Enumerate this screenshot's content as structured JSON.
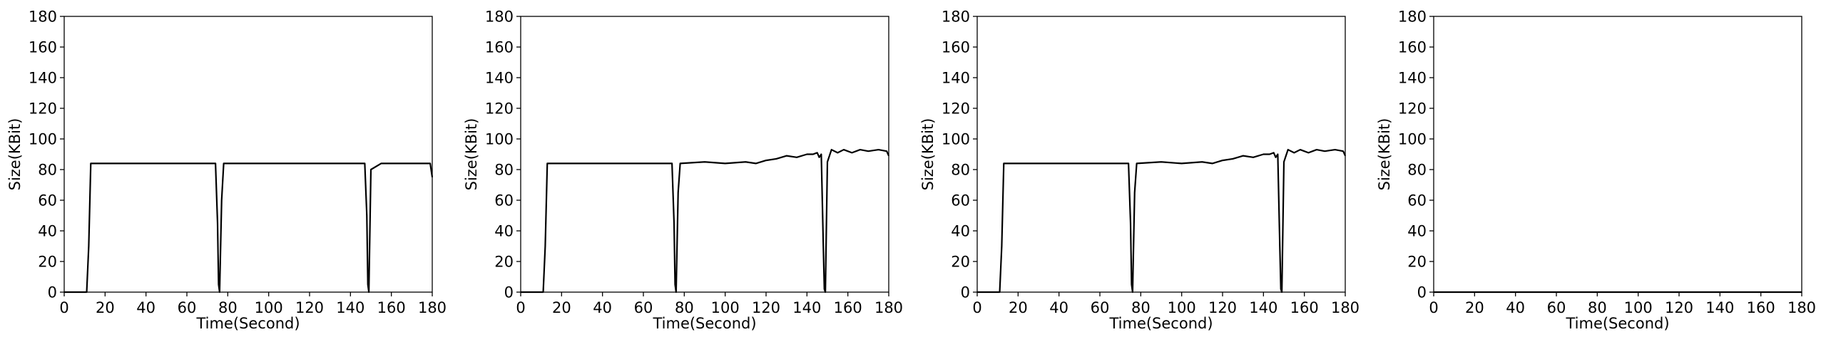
{
  "chart_data": [
    {
      "type": "line",
      "xlabel": "Time(Second)",
      "ylabel": "Size(KBit)",
      "xlim": [
        0,
        180
      ],
      "ylim": [
        0,
        180
      ],
      "xticks": [
        "0",
        "20",
        "40",
        "60",
        "80",
        "100",
        "120",
        "140",
        "160",
        "180"
      ],
      "yticks": [
        "0",
        "20",
        "40",
        "60",
        "80",
        "100",
        "120",
        "140",
        "160",
        "180"
      ],
      "grid": false,
      "series": [
        {
          "x": [
            0,
            10,
            11,
            11.5,
            12,
            13,
            20,
            40,
            60,
            70,
            74,
            75,
            75.5,
            76,
            77,
            78,
            100,
            120,
            140,
            146,
            147,
            148,
            148.5,
            149,
            150,
            155,
            170,
            178,
            179,
            180
          ],
          "y": [
            0,
            0,
            0,
            15,
            30,
            84,
            84,
            84,
            84,
            84,
            84,
            45,
            5,
            0,
            60,
            84,
            84,
            84,
            84,
            84,
            84,
            50,
            5,
            0,
            80,
            84,
            84,
            84,
            84,
            75
          ]
        }
      ]
    },
    {
      "type": "line",
      "xlabel": "Time(Second)",
      "ylabel": "Size(KBit)",
      "xlim": [
        0,
        180
      ],
      "ylim": [
        0,
        180
      ],
      "xticks": [
        "0",
        "20",
        "40",
        "60",
        "80",
        "100",
        "120",
        "140",
        "160",
        "180"
      ],
      "yticks": [
        "0",
        "20",
        "40",
        "60",
        "80",
        "100",
        "120",
        "140",
        "160",
        "180"
      ],
      "grid": false,
      "series": [
        {
          "x": [
            0,
            10,
            11,
            11.5,
            12,
            13,
            20,
            40,
            60,
            70,
            74,
            75,
            75.5,
            76,
            77,
            78,
            90,
            100,
            110,
            115,
            120,
            125,
            130,
            135,
            140,
            143,
            145,
            146,
            147,
            148,
            148.5,
            149,
            150,
            152,
            155,
            158,
            162,
            166,
            170,
            175,
            179,
            180
          ],
          "y": [
            0,
            0,
            0,
            15,
            30,
            84,
            84,
            84,
            84,
            84,
            84,
            45,
            5,
            0,
            65,
            84,
            85,
            84,
            85,
            84,
            86,
            87,
            89,
            88,
            90,
            90,
            91,
            88,
            90,
            30,
            2,
            0,
            85,
            93,
            91,
            93,
            91,
            93,
            92,
            93,
            92,
            89
          ]
        }
      ]
    },
    {
      "type": "line",
      "xlabel": "Time(Second)",
      "ylabel": "Size(KBit)",
      "xlim": [
        0,
        180
      ],
      "ylim": [
        0,
        180
      ],
      "xticks": [
        "0",
        "20",
        "40",
        "60",
        "80",
        "100",
        "120",
        "140",
        "160",
        "180"
      ],
      "yticks": [
        "0",
        "20",
        "40",
        "60",
        "80",
        "100",
        "120",
        "140",
        "160",
        "180"
      ],
      "grid": false,
      "series": [
        {
          "x": [
            0,
            10,
            11,
            11.5,
            12,
            13,
            20,
            40,
            60,
            70,
            74,
            75,
            75.5,
            76,
            77,
            78,
            90,
            100,
            110,
            115,
            120,
            125,
            130,
            135,
            140,
            143,
            145,
            146,
            147,
            148,
            148.5,
            149,
            150,
            152,
            155,
            158,
            162,
            166,
            170,
            175,
            179,
            180
          ],
          "y": [
            0,
            0,
            0,
            15,
            30,
            84,
            84,
            84,
            84,
            84,
            84,
            45,
            5,
            0,
            65,
            84,
            85,
            84,
            85,
            84,
            86,
            87,
            89,
            88,
            90,
            90,
            91,
            88,
            90,
            30,
            2,
            0,
            85,
            93,
            91,
            93,
            91,
            93,
            92,
            93,
            92,
            89
          ]
        }
      ]
    },
    {
      "type": "line",
      "xlabel": "Time(Second)",
      "ylabel": "Size(KBit)",
      "xlim": [
        0,
        180
      ],
      "ylim": [
        0,
        180
      ],
      "xticks": [
        "0",
        "20",
        "40",
        "60",
        "80",
        "100",
        "120",
        "140",
        "160",
        "180"
      ],
      "yticks": [
        "0",
        "20",
        "40",
        "60",
        "80",
        "100",
        "120",
        "140",
        "160",
        "180"
      ],
      "grid": false,
      "series": [
        {
          "x": [
            0,
            180
          ],
          "y": [
            0,
            0
          ]
        }
      ]
    }
  ]
}
